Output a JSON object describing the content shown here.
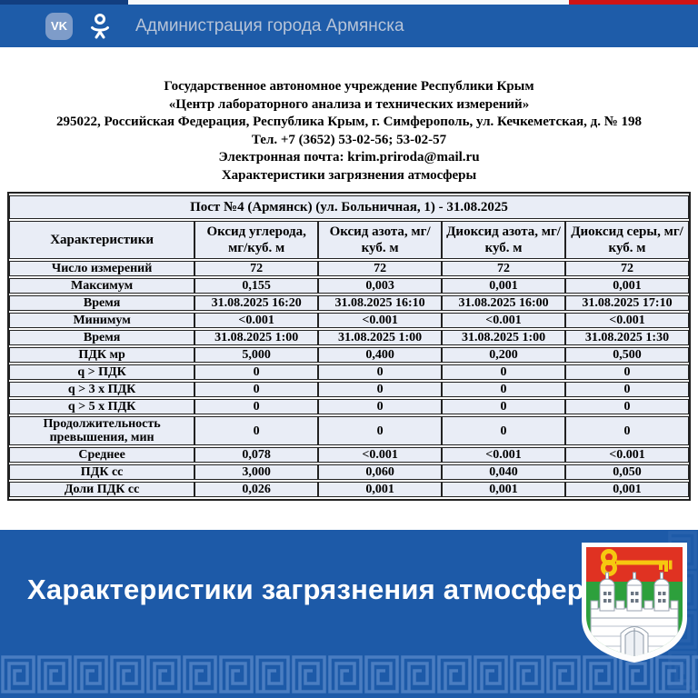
{
  "header": {
    "title": "Администрация города Армянска",
    "vk_label": "VK",
    "tricolor": {
      "navy": "#123e80",
      "white": "#f7f9fb",
      "red": "#cf1416"
    },
    "bar_color": "#1e5ca9"
  },
  "letterhead": {
    "lines": [
      "Государственное автономное учреждение Республики Крым",
      "«Центр лабораторного анализа и технических измерений»",
      "295022, Российская Федерация, Республика Крым, г. Симферополь, ул. Кечкеметская, д. № 198",
      "Тел. +7 (3652) 53-02-56; 53-02-57",
      "Электронная почта: krim.priroda@mail.ru",
      "Характеристики загрязнения атмосферы"
    ]
  },
  "table": {
    "title": "Пост №4 (Армянск) (ул. Больничная, 1) - 31.08.2025",
    "columns": [
      "Характеристики",
      "Оксид углерода, мг/куб. м",
      "Оксид азота, мг/куб. м",
      "Диоксид азота, мг/куб. м",
      "Диоксид серы, мг/куб. м"
    ],
    "rows": [
      {
        "label": "Число измерений",
        "values": [
          "72",
          "72",
          "72",
          "72"
        ]
      },
      {
        "label": "Максимум",
        "values": [
          "0,155",
          "0,003",
          "0,001",
          "0,001"
        ]
      },
      {
        "label": "Время",
        "values": [
          "31.08.2025 16:20",
          "31.08.2025 16:10",
          "31.08.2025 16:00",
          "31.08.2025 17:10"
        ]
      },
      {
        "label": "Минимум",
        "values": [
          "<0.001",
          "<0.001",
          "<0.001",
          "<0.001"
        ]
      },
      {
        "label": "Время",
        "values": [
          "31.08.2025 1:00",
          "31.08.2025 1:00",
          "31.08.2025 1:00",
          "31.08.2025 1:30"
        ]
      },
      {
        "label": "ПДК мр",
        "values": [
          "5,000",
          "0,400",
          "0,200",
          "0,500"
        ]
      },
      {
        "label": "q > ПДК",
        "values": [
          "0",
          "0",
          "0",
          "0"
        ]
      },
      {
        "label": "q > 3 х ПДК",
        "values": [
          "0",
          "0",
          "0",
          "0"
        ]
      },
      {
        "label": "q > 5 х ПДК",
        "values": [
          "0",
          "0",
          "0",
          "0"
        ]
      },
      {
        "label": "Продолжительность превышения, мин",
        "values": [
          "0",
          "0",
          "0",
          "0"
        ]
      },
      {
        "label": "Среднее",
        "values": [
          "0,078",
          "<0.001",
          "<0.001",
          "<0.001"
        ]
      },
      {
        "label": "ПДК сс",
        "values": [
          "3,000",
          "0,060",
          "0,040",
          "0,050"
        ]
      },
      {
        "label": "Доли ПДК сс",
        "values": [
          "0,026",
          "0,001",
          "0,001",
          "0,001"
        ]
      }
    ],
    "cell_background": "#e9edf6"
  },
  "banner": {
    "title": "Характеристики загрязнения атмосферы",
    "background": "#1d5aa8",
    "pattern_color": "#4a7dc1",
    "emblem": {
      "name": "coat-of-arms-armyansk",
      "colors": {
        "red": "#e03222",
        "green": "#2da03c",
        "gold": "#f6c710",
        "white": "#ffffff"
      }
    }
  }
}
